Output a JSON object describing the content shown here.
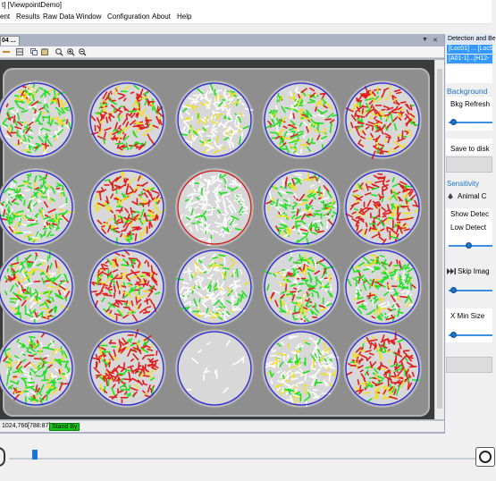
{
  "window": {
    "title": "t] [ViewpointDemo]"
  },
  "menu": [
    "ent",
    "Results",
    "Raw Data",
    "Window",
    "Configuration",
    "About",
    "Help"
  ],
  "doc_tab": {
    "label": "04 ..."
  },
  "toolbar_icons": [
    "minus-icon",
    "grid-icon",
    "copy-icon",
    "paste-icon",
    "zoom-fit-icon",
    "zoom-in-icon",
    "zoom-out-icon"
  ],
  "plate": {
    "rows": 4,
    "cols": 5,
    "wells": [
      [
        "green",
        "red",
        "white",
        "green",
        "red"
      ],
      [
        "green",
        "green-red",
        "white-selected",
        "green",
        "red"
      ],
      [
        "green",
        "red",
        "white",
        "green",
        "green"
      ],
      [
        "green",
        "red",
        "empty",
        "white",
        "red"
      ]
    ]
  },
  "status": {
    "coords": "1024,766",
    "size": "[788:87]",
    "state": "Stand By"
  },
  "right_panel": {
    "title": "Detection and Be",
    "selected_rows": [
      "[Loc01] ... [Loc5",
      "[A01-1]...[H12-"
    ],
    "background_section": "Background",
    "bkg_refresh_label": "Bkg Refresh",
    "save_label": "Save to disk",
    "sensitivity_section": "Sensitivity",
    "animal_label": "Animal C",
    "show_detect_label": "Show Detec",
    "low_detect_label": "Low Detect",
    "skip_image_label": "Skip Imag",
    "x_min_size_label": "X Min Size",
    "sliders": {
      "bkg_refresh": 0.05,
      "low_detect": 0.45,
      "skip_image": 0.05,
      "x_min_size": 0.05
    }
  },
  "timeline": {
    "position": 0.05
  },
  "colors": {
    "accent": "#1c76d2",
    "standby": "#16c916",
    "selection": "#3399ff"
  }
}
